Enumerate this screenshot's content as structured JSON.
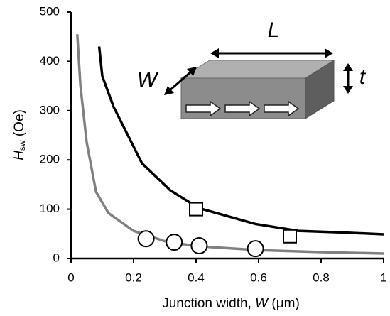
{
  "chart_data": {
    "type": "line",
    "x_label": [
      "Junction width, ",
      "W",
      " (μm)"
    ],
    "y_label": [
      "H",
      "sw",
      " (Oe)"
    ],
    "annotations": [
      "L",
      "W",
      "t"
    ],
    "xlim": [
      0,
      1
    ],
    "ylim": [
      0,
      500
    ],
    "xticks": [
      0,
      0.2,
      0.4,
      0.6,
      0.8,
      1
    ],
    "yticks": [
      0,
      100,
      200,
      300,
      400,
      500
    ],
    "series": [
      {
        "kind": "line",
        "color": "#000000",
        "x": [
          0.09,
          0.1,
          0.136,
          0.227,
          0.318,
          0.41,
          0.59,
          0.727,
          0.86,
          1.0
        ],
        "values": [
          430,
          370,
          308,
          193,
          138,
          102,
          70,
          56,
          53,
          49
        ]
      },
      {
        "kind": "line",
        "color": "#808080",
        "x": [
          0.02,
          0.03,
          0.05,
          0.08,
          0.12,
          0.2,
          0.3,
          0.4,
          0.6,
          0.8,
          1.0
        ],
        "values": [
          455,
          351,
          236,
          135,
          92,
          56,
          35,
          25,
          17,
          13,
          10
        ]
      },
      {
        "kind": "square",
        "color": "#000000",
        "x": [
          0.4,
          0.7
        ],
        "values": [
          100,
          45
        ]
      },
      {
        "kind": "circle",
        "color": "#000000",
        "x": [
          0.24,
          0.33,
          0.41,
          0.59
        ],
        "values": [
          40,
          33,
          26,
          20
        ]
      }
    ]
  }
}
